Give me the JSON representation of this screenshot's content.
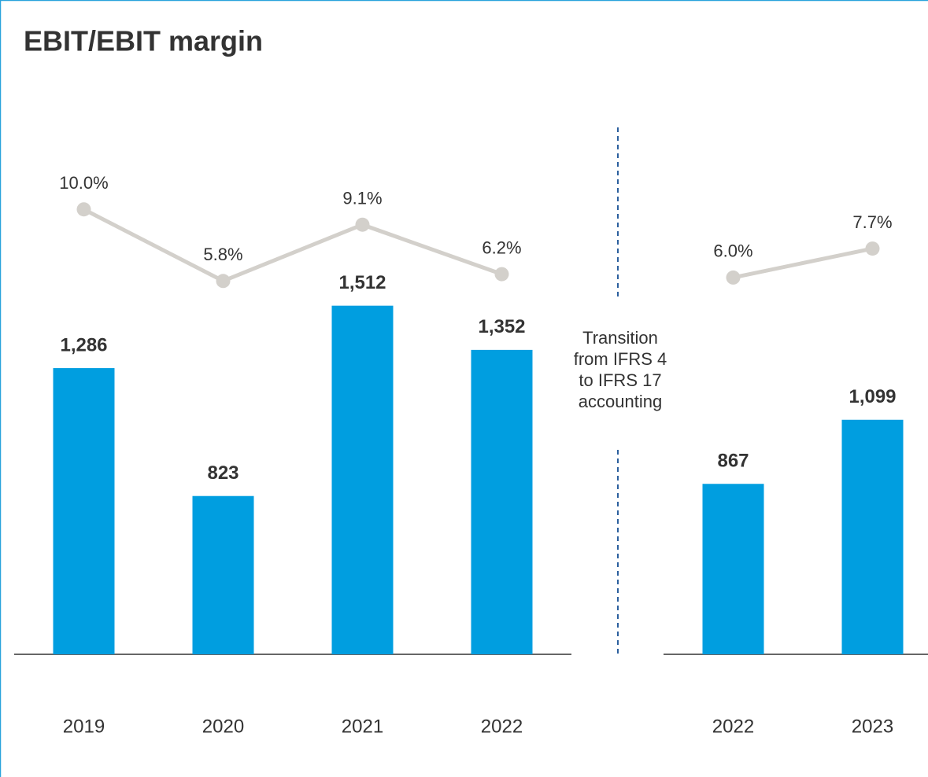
{
  "title": "EBIT/EBIT margin",
  "annotation": "Transition from IFRS 4 to IFRS 17 accounting",
  "chart_data": [
    {
      "type": "bar",
      "categories": [
        "2019",
        "2020",
        "2021",
        "2022"
      ],
      "ylim": [
        250,
        2200
      ],
      "y2lim": [
        -16.1,
        15.5
      ],
      "series": [
        {
          "type": "bar",
          "color": "#009ee0",
          "values": [
            1286,
            823,
            1512,
            1352
          ],
          "value_labels": [
            "1,286",
            "823",
            "1,512",
            "1,352"
          ]
        },
        {
          "type": "line",
          "axis": "y2",
          "color": "#d3d0cb",
          "values": [
            10.0,
            5.8,
            9.1,
            6.2
          ],
          "value_labels": [
            "10.0%",
            "5.8%",
            "9.1%",
            "6.2%"
          ]
        }
      ]
    },
    {
      "type": "bar",
      "categories": [
        "2022",
        "2023"
      ],
      "ylim": [
        250,
        2200
      ],
      "y2lim": [
        -16.1,
        15.5
      ],
      "series": [
        {
          "type": "bar",
          "color": "#009ee0",
          "values": [
            867,
            1099
          ],
          "value_labels": [
            "867",
            "1,099"
          ]
        },
        {
          "type": "line",
          "axis": "y2",
          "color": "#d3d0cb",
          "values": [
            6.0,
            7.7
          ],
          "value_labels": [
            "6.0%",
            "7.7%"
          ]
        }
      ]
    }
  ]
}
